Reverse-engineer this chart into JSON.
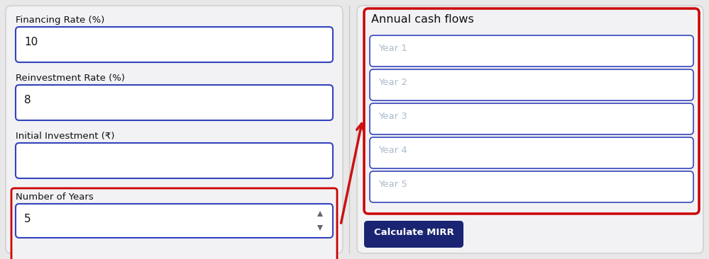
{
  "bg_color": "#e8e8e8",
  "left_panel_bg": "#f2f2f5",
  "right_panel_bg": "#f2f2f5",
  "input_bg": "#ffffff",
  "input_border": "#3344bb",
  "red_border": "#cc0000",
  "label_color": "#111111",
  "placeholder_color": "#aabbcc",
  "button_bg": "#1a2472",
  "button_text": "#ffffff",
  "left_labels": [
    "Financing Rate (%)",
    "Reinvestment Rate (%)",
    "Initial Investment (₹)",
    "Number of Years"
  ],
  "left_values": [
    "10",
    "8",
    "",
    "5"
  ],
  "right_title": "Annual cash flows",
  "year_labels": [
    "Year 1",
    "Year 2",
    "Year 3",
    "Year 4",
    "Year 5"
  ],
  "button_label": "Calculate MIRR",
  "fig_w": 9.99,
  "fig_h": 3.66,
  "dpi": 100
}
